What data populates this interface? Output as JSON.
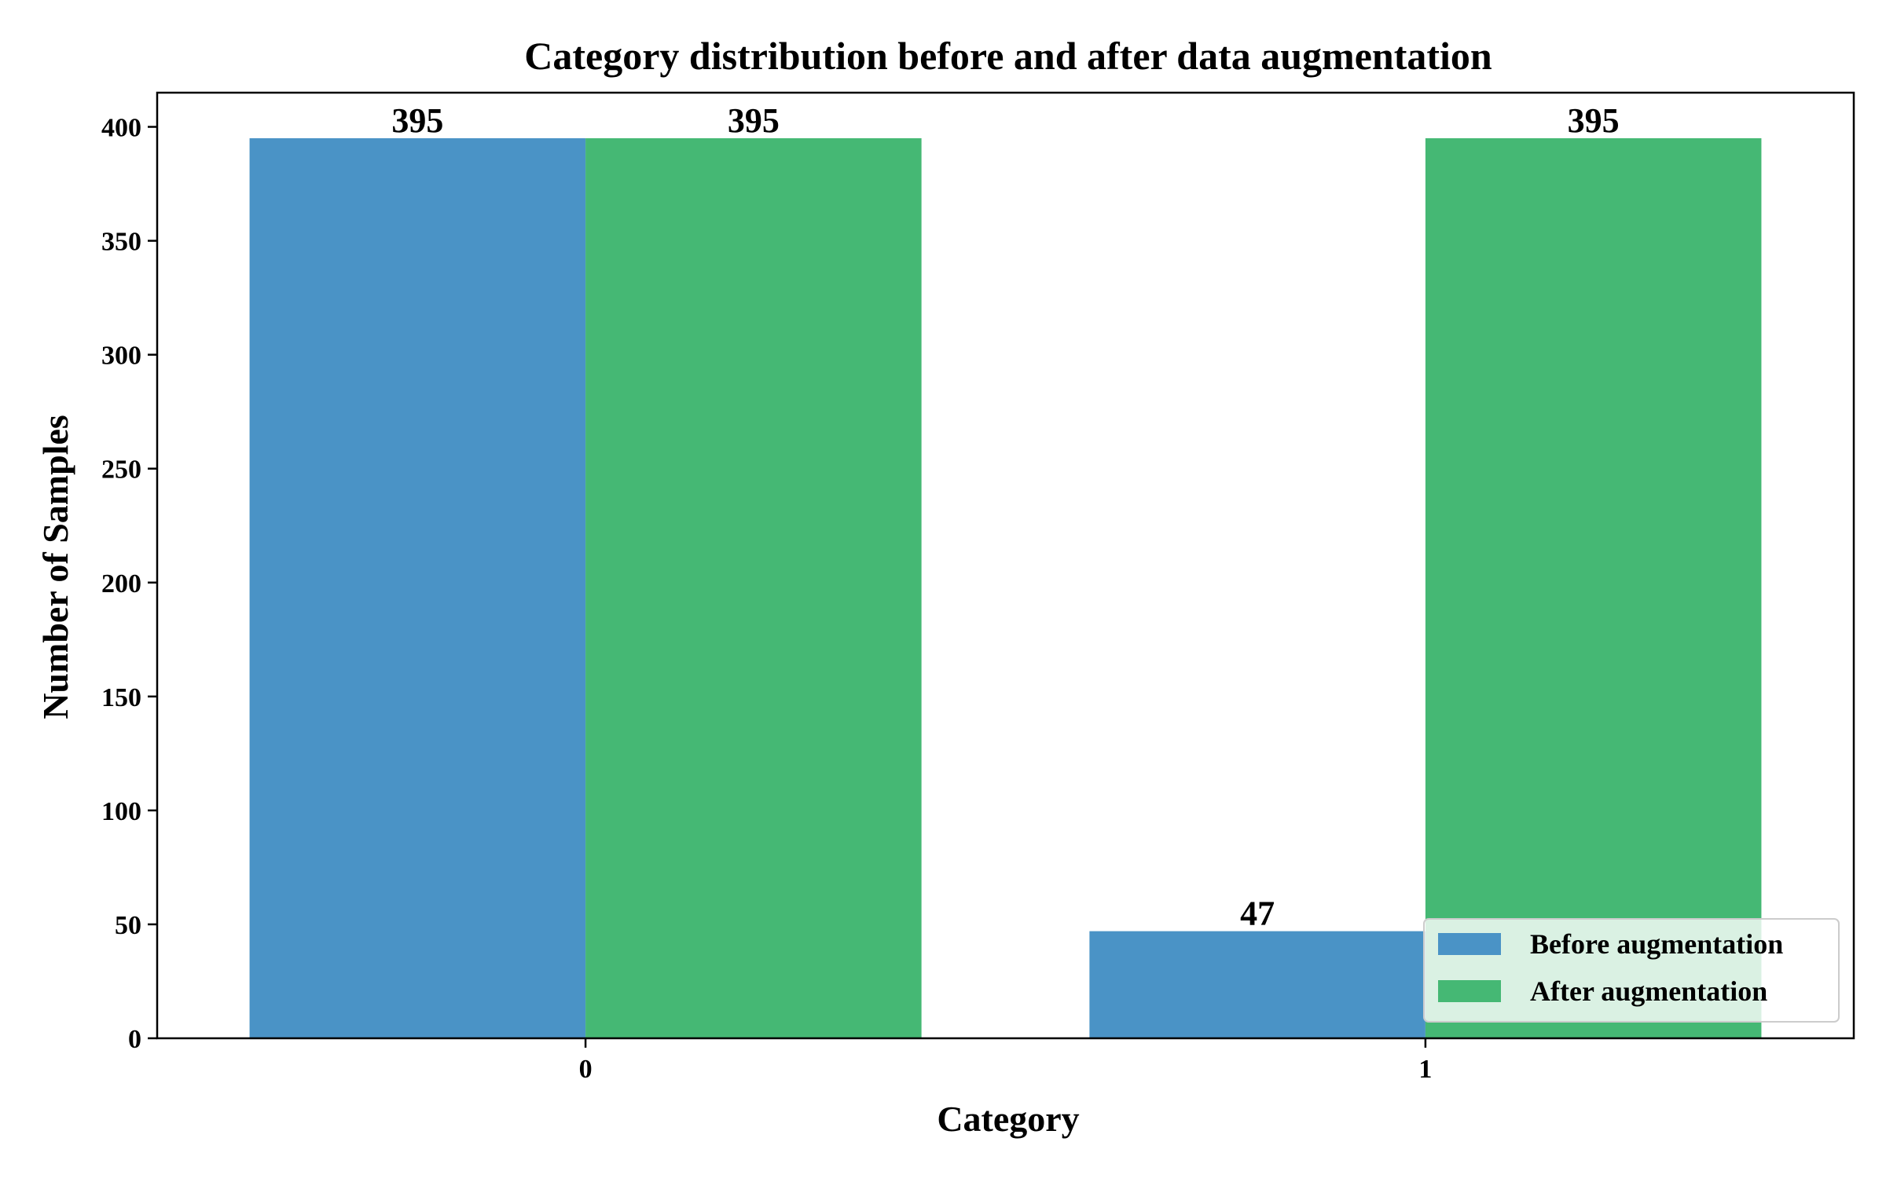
{
  "chart_data": {
    "type": "bar",
    "title": "Category distribution before and after data augmentation",
    "xlabel": "Category",
    "ylabel": "Number of Samples",
    "categories": [
      "0",
      "1"
    ],
    "series": [
      {
        "name": "Before augmentation",
        "values": [
          395,
          47
        ],
        "color": "#4a93c6"
      },
      {
        "name": "After augmentation",
        "values": [
          395,
          395
        ],
        "color": "#45b874"
      }
    ],
    "ylim": [
      0,
      415
    ],
    "yticks": [
      0,
      50,
      100,
      150,
      200,
      250,
      300,
      350,
      400
    ],
    "grid": false,
    "legend_position": "lower-right"
  }
}
